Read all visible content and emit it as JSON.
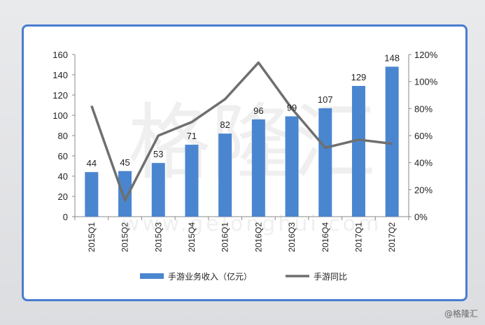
{
  "chart_data": {
    "type": "bar",
    "categories": [
      "2015Q1",
      "2015Q2",
      "2015Q3",
      "2015Q4",
      "2016Q1",
      "2016Q2",
      "2016Q3",
      "2016Q4",
      "2017Q1",
      "2017Q2"
    ],
    "series": [
      {
        "name": "手游业务收入（亿元）",
        "type": "bar",
        "axis": "left",
        "color": "#4a86d0",
        "values": [
          44,
          45,
          53,
          71,
          82,
          96,
          99,
          107,
          129,
          148
        ]
      },
      {
        "name": "手游同比",
        "type": "line",
        "axis": "right",
        "color": "#6f6f6f",
        "values": [
          0.82,
          0.12,
          0.6,
          0.7,
          0.87,
          1.14,
          0.8,
          0.51,
          0.57,
          0.54
        ]
      }
    ],
    "y_left": {
      "min": 0,
      "max": 160,
      "ticks": [
        0,
        20,
        40,
        60,
        80,
        100,
        120,
        140,
        160
      ]
    },
    "y_right": {
      "min": 0,
      "max": 1.2,
      "ticks": [
        "0%",
        "20%",
        "40%",
        "60%",
        "80%",
        "100%",
        "120%"
      ]
    },
    "grid": false,
    "legend_position": "bottom"
  },
  "watermark": {
    "text": "格隆汇",
    "url": "www.gelonghui.com"
  },
  "credit": "@格隆汇"
}
